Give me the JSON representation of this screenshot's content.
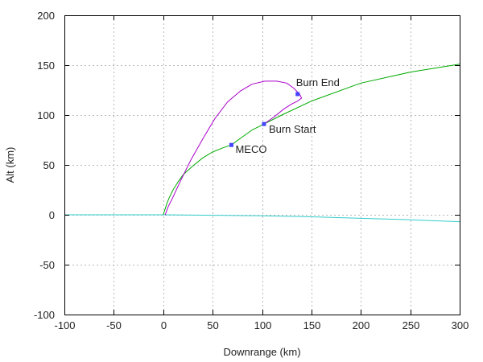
{
  "chart_data": {
    "type": "line",
    "xlabel": "Downrange (km)",
    "ylabel": "Alt (km)",
    "xlim": [
      -100,
      300
    ],
    "ylim": [
      -100,
      200
    ],
    "xticks": [
      "-100",
      "-50",
      "0",
      "50",
      "100",
      "150",
      "200",
      "250",
      "300"
    ],
    "yticks": [
      "-100",
      "-50",
      "0",
      "50",
      "100",
      "150",
      "200"
    ],
    "grid": true,
    "legend": "none",
    "series": [
      {
        "color": "#33cccc",
        "x": [
          -100,
          0,
          100,
          150,
          200,
          250,
          300
        ],
        "y": [
          0,
          0,
          -1,
          -2,
          -3.5,
          -5,
          -7
        ]
      },
      {
        "color": "#00aa00",
        "x": [
          0,
          2,
          4,
          6,
          10,
          15,
          20,
          30,
          40,
          50,
          60,
          69,
          80,
          90,
          102,
          120,
          150,
          200,
          250,
          300
        ],
        "y": [
          0,
          6,
          12,
          17,
          25,
          33,
          40,
          49,
          57,
          63,
          67,
          70,
          78,
          85,
          91,
          100,
          114,
          132,
          143,
          151
        ]
      },
      {
        "color": "#aa00cc",
        "x": [
          102,
          112,
          122,
          130,
          136,
          140,
          138,
          132,
          125,
          115,
          103,
          90,
          78,
          65,
          52,
          40,
          28,
          18,
          10,
          5,
          2
        ],
        "y": [
          91,
          98,
          106,
          111,
          114,
          117,
          121,
          127,
          132,
          134,
          134,
          131,
          124,
          113,
          96,
          76,
          55,
          35,
          18,
          8,
          0
        ]
      }
    ],
    "annotations": [
      {
        "label": "MECO",
        "x": 69,
        "y": 70
      },
      {
        "label": "Burn Start",
        "x": 102,
        "y": 91
      },
      {
        "label": "Burn End",
        "x": 136,
        "y": 121
      }
    ],
    "marker_color": "#4444ff"
  }
}
